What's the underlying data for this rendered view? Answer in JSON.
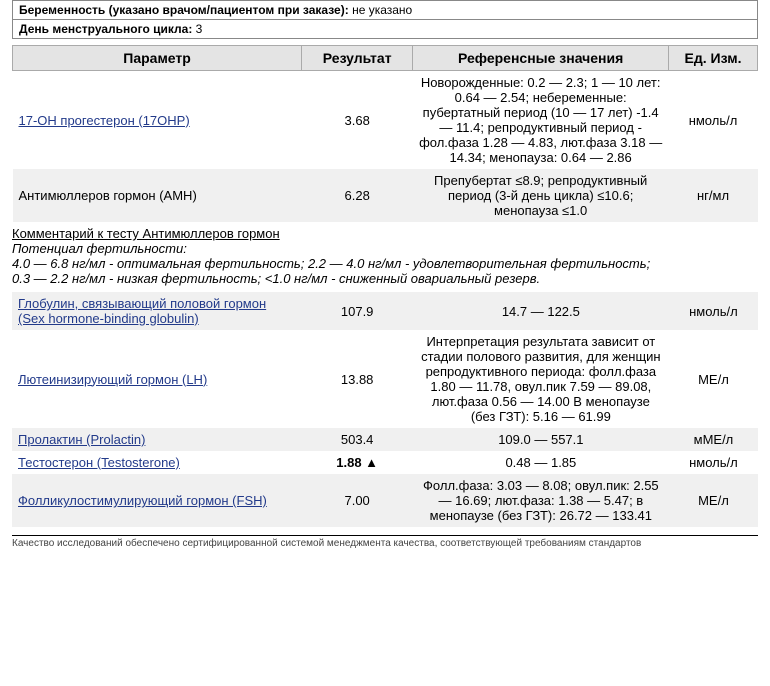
{
  "meta": {
    "pregnancy_label": "Беременность (указано врачом/пациентом при заказе):",
    "pregnancy_value": "не указано",
    "cycle_label": "День менструального цикла:",
    "cycle_value": "3"
  },
  "headers": {
    "param": "Параметр",
    "result": "Результат",
    "ref": "Референсные значения",
    "unit": "Ед. Изм."
  },
  "rows": [
    {
      "param": "17-ОН прогестерон (17ОНР)",
      "link": true,
      "result": "3.68",
      "flag": "",
      "ref": "Новорожденные: 0.2 — 2.3; 1 — 10 лет: 0.64 — 2.54; небеременные: пубертатный период (10 — 17 лет) -1.4 — 11.4; репродуктивный период - фол.фаза 1.28 — 4.83, лют.фаза 3.18 — 14.34; менопауза: 0.64 — 2.86",
      "unit": "нмоль/л",
      "shade": false
    },
    {
      "param": "Антимюллеров гормон (АМН)",
      "link": false,
      "result": "6.28",
      "flag": "",
      "ref": "Препубертат ≤8.9; репродуктивный период (3-й день цикла) ≤10.6; менопауза ≤1.0",
      "unit": "нг/мл",
      "shade": true
    }
  ],
  "comment": {
    "title": "Комментарий к тесту Антимюллеров гормон",
    "body": "Потенциал фертильности:\n4.0 — 6.8 нг/мл - оптимальная фертильность; 2.2 — 4.0 нг/мл - удовлетворительная фертильность;\n0.3 — 2.2 нг/мл - низкая фертильность; <1.0 нг/мл - сниженный овариальный резерв."
  },
  "rows2": [
    {
      "param": "Глобулин, связывающий половой гормон (Sex hormone-binding globulin)",
      "link": true,
      "result": "107.9",
      "flag": "",
      "ref": "14.7 — 122.5",
      "unit": "нмоль/л",
      "shade": true
    },
    {
      "param": "Лютеинизирующий гормон (LH)",
      "link": true,
      "result": "13.88",
      "flag": "",
      "ref": "Интерпретация результата зависит от стадии полового развития, для женщин репродуктивного периода: фолл.фаза 1.80 — 11.78, овул.пик 7.59 — 89.08, лют.фаза 0.56 — 14.00 В менопаузе (без ГЗТ): 5.16 — 61.99",
      "unit": "МЕ/л",
      "shade": false
    },
    {
      "param": "Пролактин (Prolactin)",
      "link": true,
      "result": "503.4",
      "flag": "",
      "ref": "109.0 — 557.1",
      "unit": "мМЕ/л",
      "shade": true
    },
    {
      "param": "Тестостерон (Testosterone)",
      "link": true,
      "result": "1.88",
      "flag": "▲",
      "ref": "0.48 — 1.85",
      "unit": "нмоль/л",
      "shade": false
    },
    {
      "param": "Фолликулостимулирующий гормон (FSH)",
      "link": true,
      "result": "7.00",
      "flag": "",
      "ref": "Фолл.фаза: 3.03 — 8.08; овул.пик: 2.55 — 16.69; лют.фаза: 1.38 — 5.47; в менопаузе (без ГЗТ): 26.72 — 133.41",
      "unit": "МЕ/л",
      "shade": true
    }
  ],
  "footer": "Качество исследований обеспечено сертифицированной системой менеджмента качества, соответствующей требованиям стандартов"
}
